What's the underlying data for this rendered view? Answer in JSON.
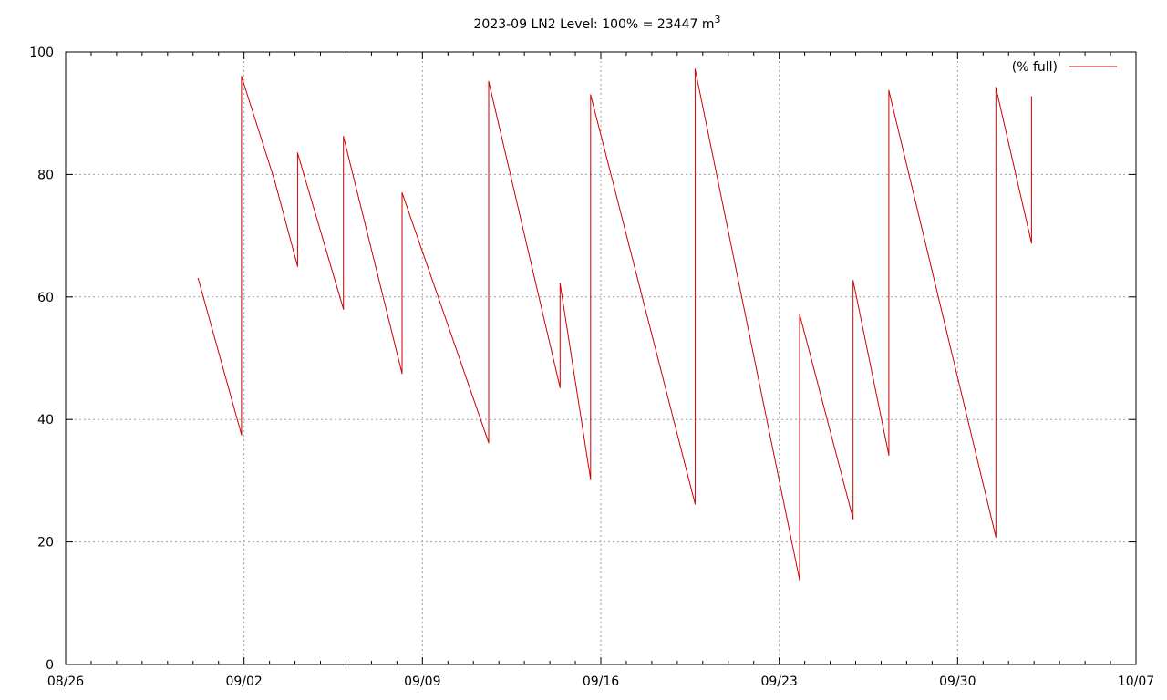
{
  "chart_data": {
    "type": "line",
    "title": "2023-09 LN2 Level: 100% = 23447 m",
    "title_superscript": "3",
    "xlabel": "",
    "ylabel": "",
    "x_ticks": [
      "08/26",
      "09/02",
      "09/09",
      "09/16",
      "09/23",
      "09/30",
      "10/07"
    ],
    "x_tick_days": [
      0,
      7,
      14,
      21,
      28,
      35,
      42
    ],
    "x_unit_note": "days after 08/26",
    "xlim": [
      0,
      42
    ],
    "y_ticks": [
      "0",
      "20",
      "40",
      "60",
      "80",
      "100"
    ],
    "ylim": [
      0,
      100
    ],
    "grid": true,
    "legend": {
      "position": "top-right",
      "entries": [
        "(% full)"
      ]
    },
    "series": [
      {
        "name": "(% full)",
        "color": "#cc0000",
        "points": [
          [
            5.2,
            63
          ],
          [
            6.9,
            37.5
          ],
          [
            6.9,
            96
          ],
          [
            8.2,
            79
          ],
          [
            9.1,
            65
          ],
          [
            9.1,
            83.5
          ],
          [
            10.9,
            58
          ],
          [
            10.9,
            86.2
          ],
          [
            13.2,
            47.5
          ],
          [
            13.2,
            77
          ],
          [
            16.6,
            36.2
          ],
          [
            16.6,
            95.2
          ],
          [
            19.4,
            45.2
          ],
          [
            19.4,
            62.2
          ],
          [
            20.6,
            30.2
          ],
          [
            20.6,
            93
          ],
          [
            24.7,
            26.2
          ],
          [
            24.7,
            97.2
          ],
          [
            28.8,
            13.8
          ],
          [
            28.8,
            57.2
          ],
          [
            30.9,
            23.8
          ],
          [
            30.9,
            62.7
          ],
          [
            32.3,
            34.2
          ],
          [
            32.3,
            93.7
          ],
          [
            36.5,
            20.8
          ],
          [
            36.5,
            94.2
          ],
          [
            37.9,
            68.8
          ],
          [
            37.9,
            92.7
          ]
        ]
      }
    ]
  }
}
